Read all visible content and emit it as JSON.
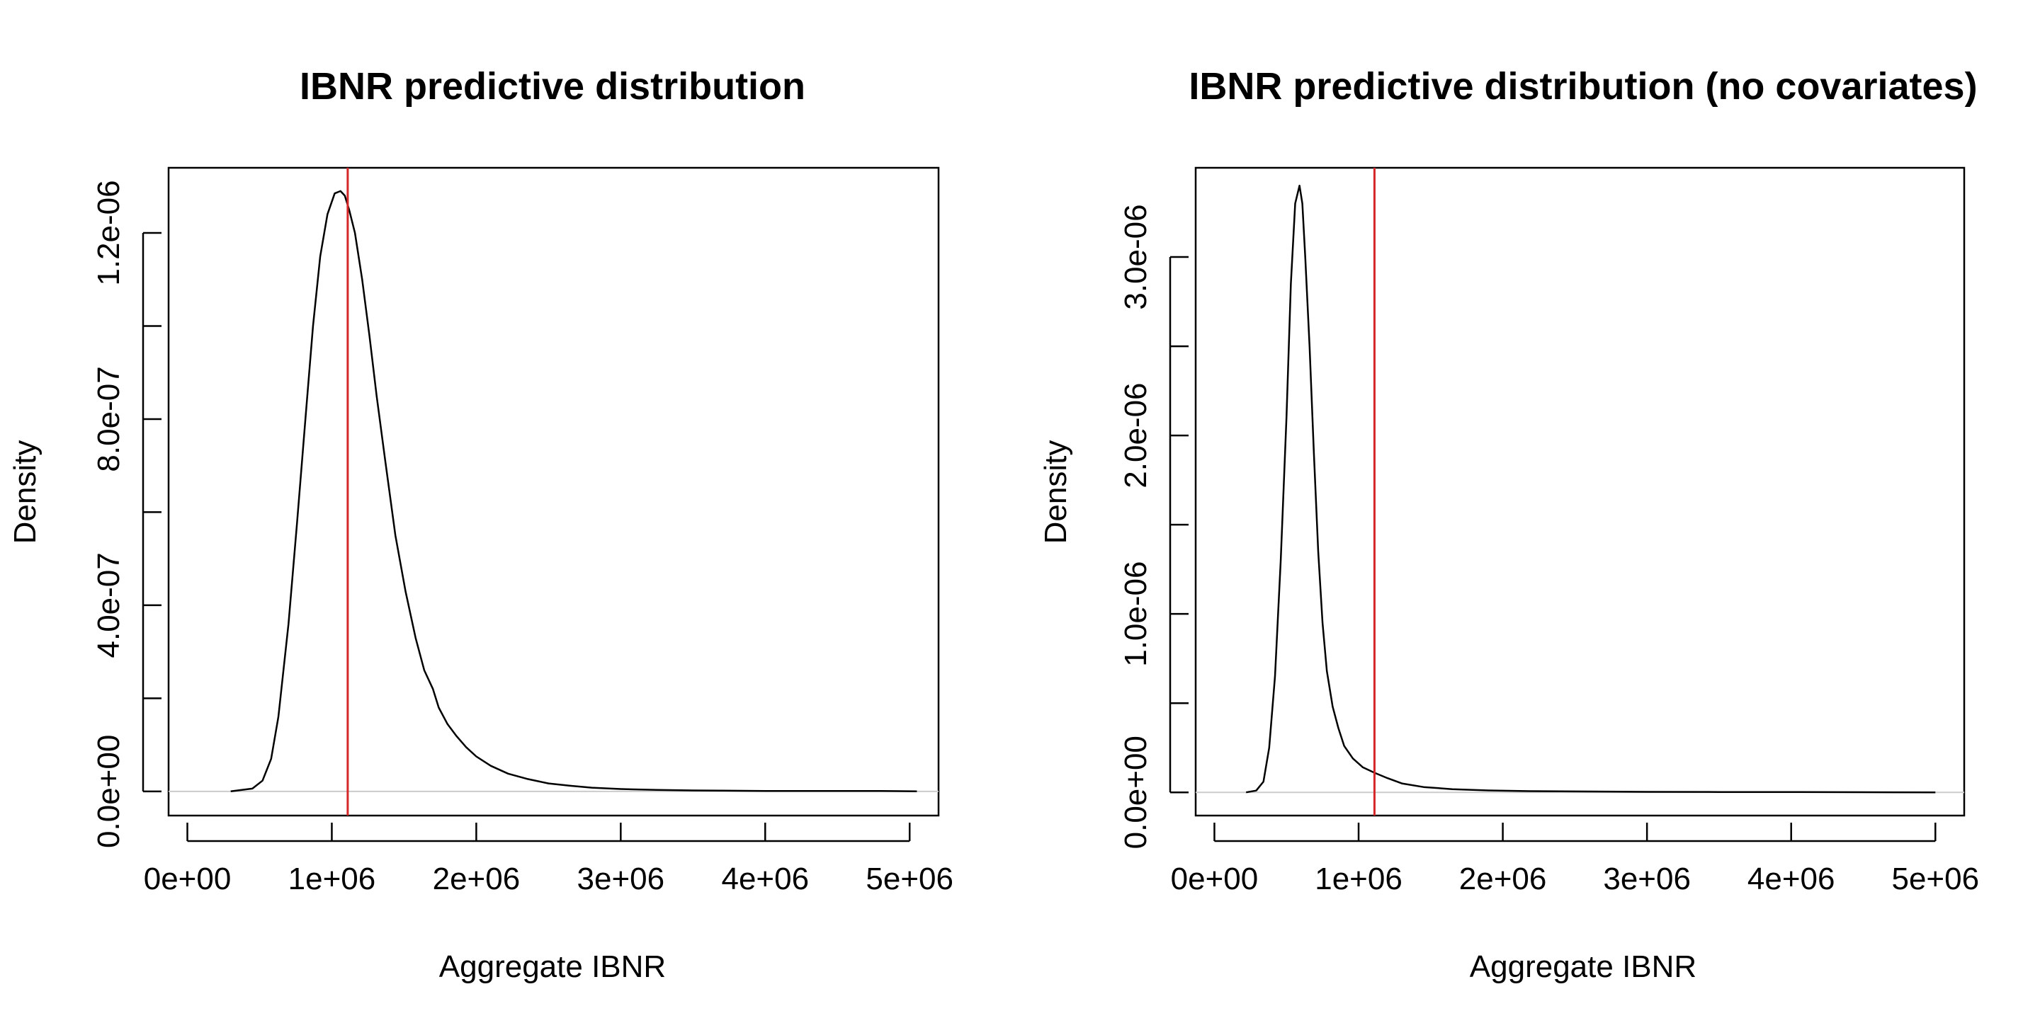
{
  "colors": {
    "density_line": "#000000",
    "reference_line": "#d62728",
    "baseline": "#cccccc",
    "axes": "#000000"
  },
  "chart_data": [
    {
      "type": "line",
      "title": "IBNR predictive distribution",
      "xlabel": "Aggregate IBNR",
      "ylabel": "Density",
      "xlim": [
        -130000,
        5200000
      ],
      "ylim": [
        -5.2e-08,
        1.34e-06
      ],
      "x_ticks": [
        0,
        1000000,
        2000000,
        3000000,
        4000000,
        5000000
      ],
      "x_tick_labels": [
        "0e+00",
        "1e+06",
        "2e+06",
        "3e+06",
        "4e+06",
        "5e+06"
      ],
      "y_ticks": [
        0,
        2e-07,
        4e-07,
        6e-07,
        8e-07,
        1e-06,
        1.2e-06
      ],
      "y_tick_labels": [
        "0.0e+00",
        "",
        "4.0e-07",
        "",
        "8.0e-07",
        "",
        "1.2e-06"
      ],
      "reference_line_x": 1110000,
      "series": [
        {
          "x": [
            300000,
            450000,
            520000,
            580000,
            630000,
            700000,
            760000,
            820000,
            870000,
            920000,
            970000,
            1020000,
            1060000,
            1090000,
            1120000,
            1160000,
            1210000,
            1260000,
            1310000,
            1370000,
            1440000,
            1510000,
            1580000,
            1640000,
            1700000,
            1740000,
            1800000,
            1860000,
            1930000,
            2000000,
            2100000,
            2220000,
            2350000,
            2500000,
            2650000,
            2800000,
            3000000,
            3250000,
            3500000,
            3700000,
            4000000,
            4400000,
            4800000,
            5050000
          ],
          "y": [
            0,
            6e-09,
            2.3e-08,
            7e-08,
            1.6e-07,
            3.6e-07,
            5.8e-07,
            8.1e-07,
            1e-06,
            1.15e-06,
            1.24e-06,
            1.285e-06,
            1.29e-06,
            1.28e-06,
            1.25e-06,
            1.2e-06,
            1.1e-06,
            9.8e-07,
            8.5e-07,
            7.1e-07,
            5.5e-07,
            4.3e-07,
            3.3e-07,
            2.6e-07,
            2.2e-07,
            1.8e-07,
            1.45e-07,
            1.2e-07,
            9.5e-08,
            7.5e-08,
            5.5e-08,
            3.8e-08,
            2.7e-08,
            1.7e-08,
            1.2e-08,
            8e-09,
            5e-09,
            3e-09,
            2e-09,
            1.5e-09,
            1e-09,
            1e-09,
            1e-09,
            0
          ]
        }
      ]
    },
    {
      "type": "line",
      "title": "IBNR predictive distribution (no covariates)",
      "xlabel": "Aggregate IBNR",
      "ylabel": "Density",
      "xlim": [
        -130000,
        5200000
      ],
      "ylim": [
        -1.3e-07,
        3.5e-06
      ],
      "x_ticks": [
        0,
        1000000,
        2000000,
        3000000,
        4000000,
        5000000
      ],
      "x_tick_labels": [
        "0e+00",
        "1e+06",
        "2e+06",
        "3e+06",
        "4e+06",
        "5e+06"
      ],
      "y_ticks": [
        0,
        5e-07,
        1e-06,
        1.5e-06,
        2e-06,
        2.5e-06,
        3e-06
      ],
      "y_tick_labels": [
        "0.0e+00",
        "",
        "1.0e-06",
        "",
        "2.0e-06",
        "",
        "3.0e-06"
      ],
      "reference_line_x": 1110000,
      "series": [
        {
          "x": [
            220000,
            290000,
            340000,
            380000,
            420000,
            460000,
            500000,
            530000,
            560000,
            590000,
            610000,
            630000,
            660000,
            690000,
            720000,
            750000,
            780000,
            820000,
            860000,
            900000,
            960000,
            1030000,
            1110000,
            1200000,
            1300000,
            1450000,
            1650000,
            1900000,
            2200000,
            2600000,
            3000000,
            3500000,
            4000000,
            4500000,
            5000000
          ],
          "y": [
            0,
            1e-08,
            6e-08,
            2.5e-07,
            6.5e-07,
            1.3e-06,
            2.1e-06,
            2.85e-06,
            3.3e-06,
            3.4e-06,
            3.3e-06,
            3e-06,
            2.5e-06,
            1.9e-06,
            1.35e-06,
            9.5e-07,
            6.8e-07,
            4.8e-07,
            3.6e-07,
            2.6e-07,
            1.9e-07,
            1.4e-07,
            1.1e-07,
            8e-08,
            5e-08,
            3e-08,
            1.8e-08,
            1.1e-08,
            7e-09,
            5e-09,
            3e-09,
            2e-09,
            2e-09,
            1e-09,
            0
          ]
        }
      ]
    }
  ]
}
